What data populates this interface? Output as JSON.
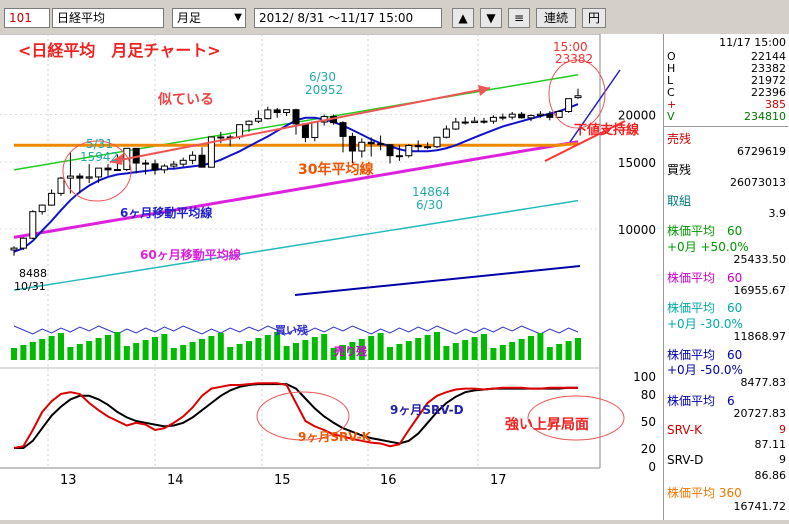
{
  "toolbar": {
    "code": "101",
    "name": "日経平均",
    "period": "月足",
    "dropdown_arrow": "▼",
    "date_range": "2012/ 8/31 ～11/17 15:00",
    "up_label": "▲",
    "down_label": "▼",
    "menu_label": "≡",
    "continuous_label": "連続",
    "yen_label": "円"
  },
  "header": {
    "datetime": "11/17 15:00",
    "ohlc": [
      {
        "label": "O",
        "value": "22144"
      },
      {
        "label": "H",
        "value": "23382"
      },
      {
        "label": "L",
        "value": "21972"
      },
      {
        "label": "C",
        "value": "22396"
      },
      {
        "label": "+",
        "value": "385"
      },
      {
        "label": "V",
        "value": "234810"
      }
    ]
  },
  "side": {
    "rows": [
      {
        "label": "売残",
        "value": "",
        "color": "#cc0000"
      },
      {
        "label": "",
        "value": "6729619",
        "color": "#000000"
      },
      {
        "label": "買残",
        "value": "",
        "color": "#000000"
      },
      {
        "label": "",
        "value": "26073013",
        "color": "#000000"
      },
      {
        "label": "取組",
        "value": "",
        "color": "#007777"
      },
      {
        "label": "",
        "value": "3.9",
        "color": "#000000"
      },
      {
        "label": "株価平均　60",
        "value": "",
        "color": "#009900"
      },
      {
        "label": "+0月 +50.0%",
        "value": "",
        "color": "#009900"
      },
      {
        "label": "",
        "value": "25433.50",
        "color": "#000000"
      },
      {
        "label": "株価平均　60",
        "value": "",
        "color": "#cc00cc"
      },
      {
        "label": "",
        "value": "16955.67",
        "color": "#000000"
      },
      {
        "label": "株価平均　60",
        "value": "",
        "color": "#00aaaa"
      },
      {
        "label": "+0月 -30.0%",
        "value": "",
        "color": "#00aaaa"
      },
      {
        "label": "",
        "value": "11868.97",
        "color": "#000000"
      },
      {
        "label": "株価平均　60",
        "value": "",
        "color": "#0000aa"
      },
      {
        "label": "+0月 -50.0%",
        "value": "",
        "color": "#0000aa"
      },
      {
        "label": "",
        "value": "8477.83",
        "color": "#000000"
      },
      {
        "label": "株価平均　6",
        "value": "",
        "color": "#0000aa"
      },
      {
        "label": "",
        "value": "20727.83",
        "color": "#000000"
      },
      {
        "label": "SRV-K",
        "value": "9",
        "color": "#cc0000"
      },
      {
        "label": "",
        "value": "87.11",
        "color": "#000000"
      },
      {
        "label": "SRV-D",
        "value": "9",
        "color": "#000000"
      },
      {
        "label": "",
        "value": "86.86",
        "color": "#000000"
      },
      {
        "label": "株価平均 360",
        "value": "",
        "color": "#ee7700"
      },
      {
        "label": "",
        "value": "16741.72",
        "color": "#000000"
      }
    ]
  },
  "chart_data": {
    "type": "candlestick",
    "title": "<日経平均　月足チャート>",
    "x_ticks": [
      "13",
      "14",
      "15",
      "16",
      "17"
    ],
    "y_ticks": [
      10000,
      15000,
      20000
    ],
    "osc_ticks": [
      100,
      80,
      50,
      20,
      0
    ],
    "annotations": {
      "similar": "似ている",
      "ma30y": "30年平均線",
      "ma6m": "6ヶ月移動平均線",
      "ma60m": "60ヶ月移動平均線",
      "support": "下値支持線",
      "buy_remain": "買い残",
      "sell_remain": "売り残",
      "srvk": "9ヶ月SRV-K",
      "srvd": "9ヶ月SRV-D",
      "strong": "強い上昇局面",
      "p1_date": "5/31",
      "p1_val": "15942",
      "p2_date": "6/30",
      "p2_val": "20952",
      "p3_date": "15:00",
      "p3_val": "23382",
      "p4_val": "14864",
      "p4_date": "6/30",
      "p5_val": "8488",
      "p5_date": "10/31"
    },
    "candles": [
      [
        8800,
        9000,
        8500,
        8900
      ],
      [
        8900,
        9500,
        8800,
        9450
      ],
      [
        9450,
        11200,
        9400,
        11100
      ],
      [
        11100,
        11600,
        10900,
        11550
      ],
      [
        11550,
        12700,
        11500,
        12400
      ],
      [
        12400,
        13700,
        12200,
        13600
      ],
      [
        13600,
        15942,
        12400,
        13770
      ],
      [
        13770,
        14000,
        12400,
        13600
      ],
      [
        13600,
        14800,
        13200,
        13700
      ],
      [
        13700,
        14400,
        13200,
        14450
      ],
      [
        14450,
        14800,
        13800,
        14300
      ],
      [
        14300,
        15700,
        14200,
        14330
      ],
      [
        14330,
        16300,
        14200,
        16290
      ],
      [
        16290,
        16300,
        14000,
        14900
      ],
      [
        14900,
        15200,
        13900,
        14830
      ],
      [
        14830,
        15200,
        13900,
        14300
      ],
      [
        14300,
        14800,
        14000,
        14630
      ],
      [
        14630,
        15100,
        14400,
        14800
      ],
      [
        14800,
        15400,
        14600,
        15150
      ],
      [
        15150,
        16000,
        14800,
        15620
      ],
      [
        15620,
        16400,
        14500,
        14530
      ],
      [
        14530,
        17500,
        14500,
        17450
      ],
      [
        17450,
        18000,
        16800,
        17450
      ],
      [
        17450,
        17700,
        16500,
        17450
      ],
      [
        17450,
        18800,
        17200,
        18800
      ],
      [
        18800,
        19300,
        18000,
        19200
      ],
      [
        19200,
        20500,
        19000,
        19500
      ],
      [
        19500,
        20952,
        19400,
        20560
      ],
      [
        20560,
        20800,
        19600,
        20235
      ],
      [
        20235,
        20600,
        19800,
        20585
      ],
      [
        20585,
        20700,
        17700,
        18890
      ],
      [
        18890,
        19000,
        16900,
        17390
      ],
      [
        17390,
        19200,
        17000,
        19100
      ],
      [
        19100,
        20000,
        18700,
        19750
      ],
      [
        19750,
        20000,
        18800,
        19030
      ],
      [
        19030,
        19200,
        15900,
        17510
      ],
      [
        17510,
        17900,
        14900,
        16030
      ],
      [
        16030,
        17300,
        15400,
        16900
      ],
      [
        16900,
        17400,
        15500,
        16750
      ],
      [
        16750,
        17600,
        16100,
        16650
      ],
      [
        16650,
        16700,
        14864,
        15580
      ],
      [
        15580,
        16600,
        15100,
        15580
      ],
      [
        15580,
        16700,
        15400,
        16570
      ],
      [
        16570,
        17100,
        16000,
        16450
      ],
      [
        16450,
        16900,
        16200,
        16450
      ],
      [
        16450,
        17400,
        16300,
        17420
      ],
      [
        17420,
        18700,
        17300,
        18310
      ],
      [
        18310,
        19600,
        18200,
        19100
      ],
      [
        19100,
        19700,
        18800,
        19040
      ],
      [
        19040,
        19700,
        19000,
        19200
      ],
      [
        19200,
        19600,
        18900,
        19200
      ],
      [
        19200,
        19900,
        18900,
        19650
      ],
      [
        19650,
        20100,
        19300,
        19680
      ],
      [
        19680,
        20300,
        19400,
        20030
      ],
      [
        20030,
        20300,
        19500,
        19600
      ],
      [
        19600,
        20000,
        19200,
        19880
      ],
      [
        19880,
        20400,
        19600,
        20030
      ],
      [
        20030,
        20400,
        19300,
        19650
      ],
      [
        19650,
        20500,
        19600,
        20360
      ],
      [
        20360,
        22000,
        20200,
        22010
      ],
      [
        22144,
        23382,
        21972,
        22396
      ]
    ],
    "ma6": [
      8700,
      8900,
      9300,
      9900,
      10500,
      11200,
      11900,
      12500,
      13000,
      13400,
      13700,
      13900,
      14000,
      14100,
      14200,
      14300,
      14400,
      14400,
      14500,
      14600,
      14700,
      14900,
      15200,
      15600,
      16000,
      16500,
      17000,
      17500,
      18100,
      18700,
      19300,
      19600,
      19600,
      19400,
      19100,
      18700,
      18200,
      17700,
      17200,
      16800,
      16500,
      16200,
      16000,
      16000,
      16000,
      16100,
      16300,
      16600,
      17000,
      17400,
      17800,
      18200,
      18600,
      18900,
      19200,
      19500,
      19800,
      20100,
      20400,
      20800,
      21300
    ],
    "ma30y": [
      16600,
      16600,
      16600,
      16600,
      16600,
      16600,
      16600,
      16600,
      16600,
      16600,
      16600,
      16600,
      16600,
      16600,
      16600,
      16600,
      16600,
      16600,
      16600,
      16600,
      16600,
      16600,
      16600,
      16600,
      16600,
      16600,
      16600,
      16600,
      16600,
      16600,
      16600,
      16600,
      16600,
      16600,
      16600,
      16600,
      16600,
      16600,
      16600,
      16600,
      16600,
      16600,
      16600,
      16600,
      16600,
      16600,
      16600,
      16600,
      16600,
      16600,
      16600,
      16600,
      16600,
      16600,
      16600,
      16600,
      16600,
      16600,
      16600,
      16700,
      16741
    ],
    "srv_k": [
      20,
      22,
      40,
      60,
      72,
      80,
      82,
      80,
      70,
      62,
      55,
      50,
      45,
      48,
      46,
      40,
      42,
      48,
      55,
      65,
      78,
      86,
      88,
      90,
      90,
      91,
      92,
      92,
      92,
      90,
      70,
      50,
      44,
      40,
      35,
      33,
      30,
      28,
      26,
      25,
      22,
      24,
      40,
      55,
      70,
      78,
      82,
      85,
      86,
      86,
      85,
      86,
      87,
      87,
      87,
      86,
      86,
      87,
      87,
      87,
      87
    ],
    "srv_d": [
      20,
      20,
      28,
      42,
      56,
      66,
      74,
      78,
      78,
      74,
      68,
      60,
      54,
      50,
      48,
      46,
      44,
      45,
      48,
      54,
      62,
      70,
      78,
      84,
      88,
      90,
      91,
      91,
      91,
      91,
      86,
      75,
      64,
      55,
      48,
      42,
      38,
      34,
      31,
      29,
      27,
      25,
      28,
      36,
      48,
      60,
      70,
      77,
      82,
      84,
      85,
      86,
      86,
      86,
      86,
      86,
      86,
      86,
      86,
      87,
      86.86
    ]
  }
}
